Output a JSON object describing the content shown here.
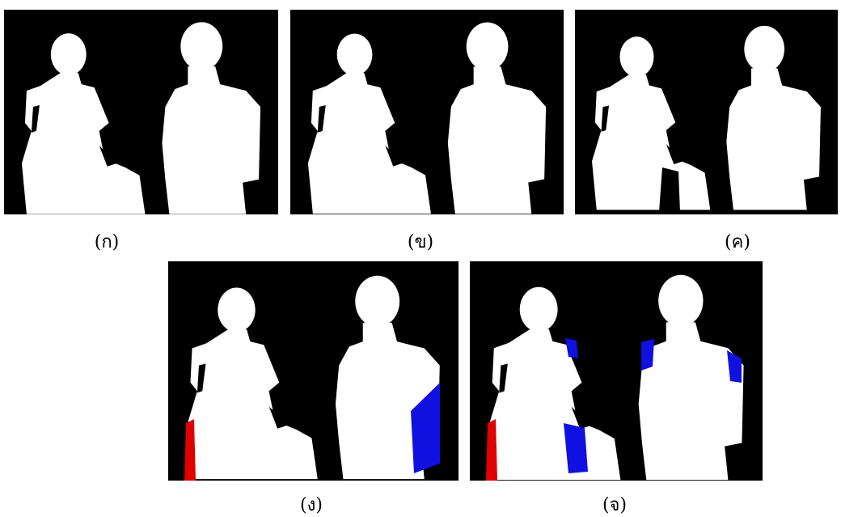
{
  "captions": [
    "(ก)",
    "(ข)",
    "(ค)",
    "(ง)",
    "(จ)"
  ]
}
